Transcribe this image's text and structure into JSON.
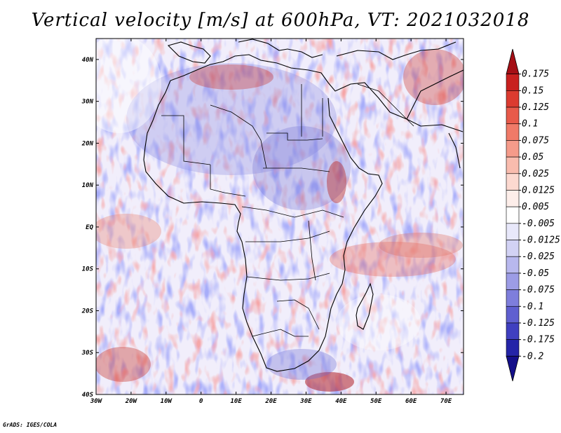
{
  "title": "Vertical velocity [m/s] at 600hPa, VT: 2021032018",
  "credit": "GrADS: IGES/COLA",
  "map": {
    "region": "Africa",
    "projection": "lat-lon",
    "lon_range": [
      -30,
      75
    ],
    "lat_range": [
      -40,
      45
    ],
    "x_ticks": [
      "30W",
      "20W",
      "10W",
      "0",
      "10E",
      "20E",
      "30E",
      "40E",
      "50E",
      "60E",
      "70E"
    ],
    "y_ticks": [
      "40N",
      "30N",
      "20N",
      "10N",
      "EQ",
      "10S",
      "20S",
      "30S",
      "40S"
    ]
  },
  "colorbar": {
    "labels": [
      "0.175",
      "0.15",
      "0.125",
      "0.1",
      "0.075",
      "0.05",
      "0.025",
      "0.0125",
      "0.005",
      "-0.005",
      "-0.0125",
      "-0.025",
      "-0.05",
      "-0.075",
      "-0.1",
      "-0.125",
      "-0.175",
      "-0.2"
    ],
    "colors": [
      "#a50f15",
      "#c8201f",
      "#dc3b30",
      "#e85a4a",
      "#f07a68",
      "#f59b8a",
      "#f9bcae",
      "#fcd9d0",
      "#fdeeea",
      "#ffffff",
      "#e8e8fa",
      "#d2d2f4",
      "#b8b8ee",
      "#9c9ce6",
      "#7e7edc",
      "#5f5fd0",
      "#3f3fc0",
      "#2424a8",
      "#140f8a"
    ]
  }
}
